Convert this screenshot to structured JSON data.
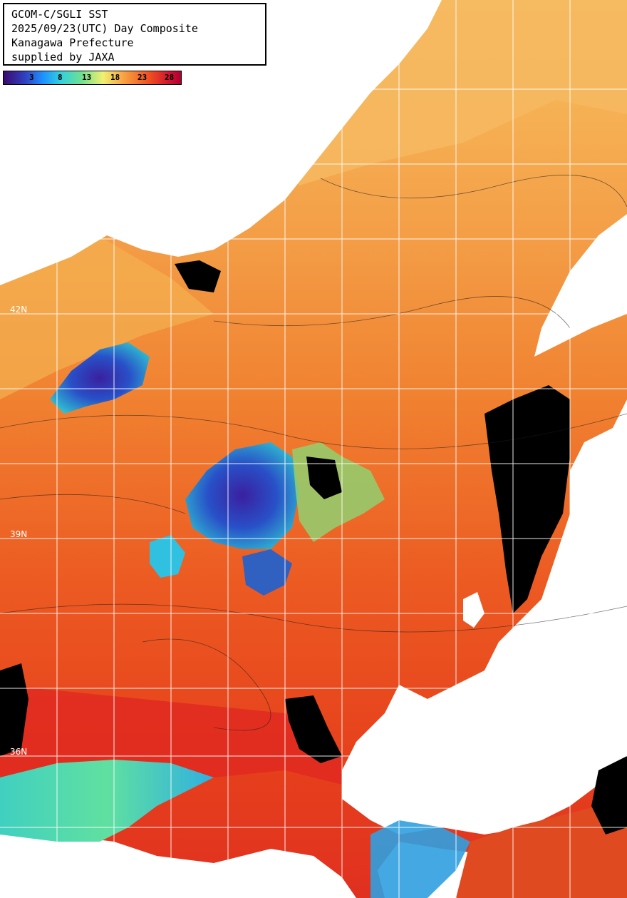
{
  "title_lines": [
    "GCOM-C/SGLI SST",
    "2025/09/23(UTC) Day Composite",
    "Kanagawa Prefecture",
    "supplied by JAXA"
  ],
  "colorbar": {
    "ticks": [
      "3",
      "8",
      "13",
      "18",
      "23",
      "28"
    ]
  },
  "lat_labels": [
    "42N",
    "39N",
    "36N"
  ],
  "colors": {
    "land": "#ffffff",
    "cloud": "#000000",
    "warm_sea": "#e8401e",
    "mid_sea": "#f08030",
    "cool_sea": "#f8b050",
    "cold_patch": "#3030a0"
  }
}
